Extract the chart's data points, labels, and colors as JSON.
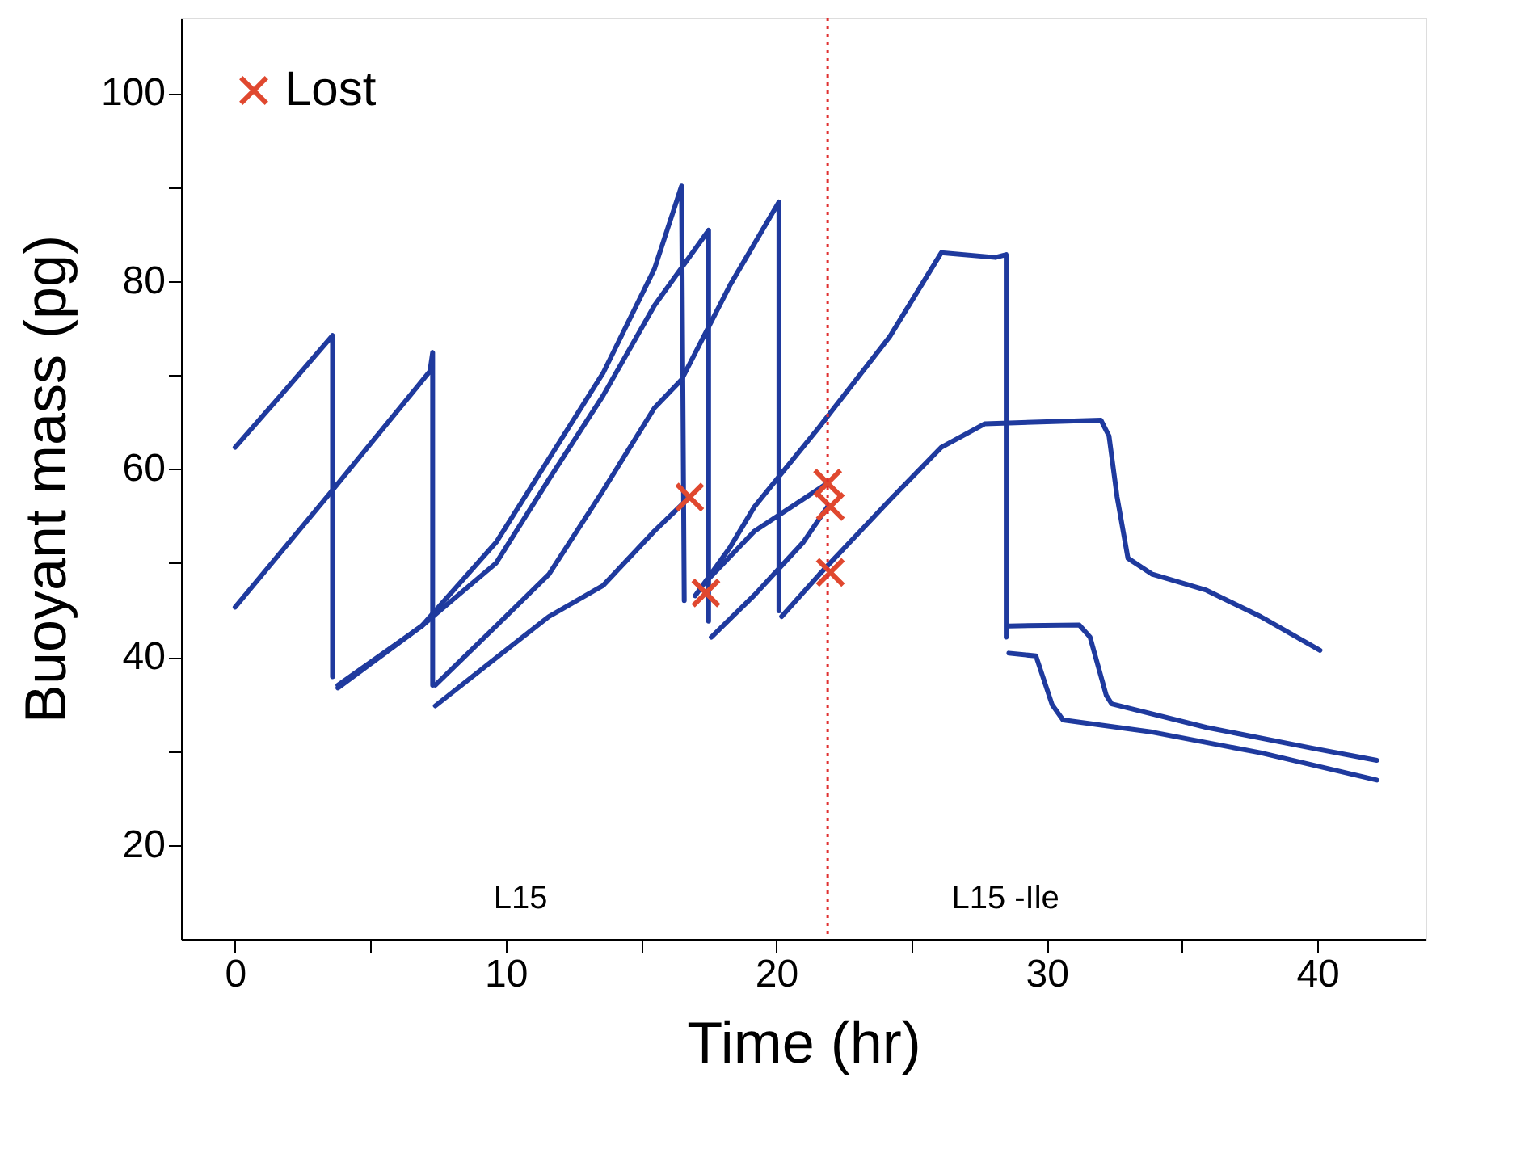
{
  "chart_data": {
    "type": "line",
    "xlabel": "Time (hr)",
    "ylabel": "Buoyant mass (pg)",
    "xlim": [
      -2,
      44
    ],
    "ylim": [
      10,
      108
    ],
    "xticks": [
      0,
      {
        "value": 5,
        "label": null
      },
      10,
      {
        "value": 15,
        "label": null
      },
      20,
      {
        "value": 25,
        "label": null
      },
      30,
      {
        "value": 35,
        "label": null
      },
      40
    ],
    "yticks": [
      20,
      {
        "value": 30,
        "label": null
      },
      40,
      {
        "value": 50,
        "label": null
      },
      60,
      {
        "value": 70,
        "label": null
      },
      80,
      {
        "value": 90,
        "label": null
      },
      100
    ],
    "grid": false,
    "legend": "top left",
    "series": [
      {
        "color": "#1f3a9e",
        "x": [
          0,
          1.8,
          3.6,
          3.6
        ],
        "values": [
          62.3,
          68.2,
          74.2,
          37.9
        ]
      },
      {
        "color": "#1f3a9e",
        "x": [
          0,
          3.5,
          7.2,
          7.3,
          7.3
        ],
        "values": [
          45.3,
          57.4,
          70.4,
          72.4,
          37
        ]
      },
      {
        "color": "#1f3a9e",
        "x": [
          3.8,
          6.9,
          9.65,
          11.6,
          13.6,
          15.5,
          16.5,
          16.6
        ],
        "values": [
          36.7,
          43.3,
          52.2,
          61.1,
          70.2,
          81.3,
          90.1,
          46
        ]
      },
      {
        "color": "#1f3a9e",
        "x": [
          3.8,
          6.9,
          9.65,
          11.6,
          13.6,
          15.5,
          17.5,
          17.5
        ],
        "values": [
          37,
          43.3,
          50,
          58.9,
          67.8,
          77.4,
          85.4,
          43.8
        ]
      },
      {
        "color": "#1f3a9e",
        "x": [
          7.4,
          9.65,
          11.6,
          13.6,
          15.5,
          16.5,
          18.3,
          20.1,
          20.1
        ],
        "values": [
          37,
          43.3,
          48.8,
          57.7,
          66.5,
          69.5,
          79.6,
          88.4,
          44.9
        ]
      },
      {
        "color": "#1f3a9e",
        "x": [
          7.4,
          9.65,
          11.6,
          13.6,
          15.5,
          16.8
        ],
        "values": [
          34.8,
          39.9,
          44.3,
          47.6,
          53.4,
          57
        ]
      },
      {
        "color": "#1f3a9e",
        "x": [
          17.5,
          19.2,
          21.9
        ],
        "values": [
          48.3,
          53.4,
          58.5
        ]
      },
      {
        "color": "#1f3a9e",
        "x": [
          17.6,
          19.2,
          21,
          21.9
        ],
        "values": [
          42.1,
          46.6,
          52.2,
          56
        ]
      },
      {
        "color": "#1f3a9e",
        "x": [
          20.2,
          21.6,
          24.2,
          26.1,
          27.7,
          32,
          32.3,
          32.6,
          33,
          33.9,
          35.9,
          37.9,
          40.1
        ],
        "values": [
          44.3,
          48.8,
          56.7,
          62.3,
          64.8,
          65.2,
          63.5,
          57,
          50.5,
          48.8,
          47.1,
          44.3,
          40.7
        ]
      },
      {
        "color": "#1f3a9e",
        "x": [
          17,
          18.3,
          19.2,
          21.6,
          24.2,
          26.1,
          28.1,
          28.5,
          28.5
        ],
        "values": [
          46.5,
          51.7,
          56,
          64.5,
          74.1,
          83,
          82.5,
          82.8,
          42.1
        ]
      },
      {
        "color": "#1f3a9e",
        "x": [
          28.6,
          31.2,
          31.6,
          32.2,
          32.4,
          35.9,
          39.8,
          42.2
        ],
        "values": [
          43.3,
          43.4,
          42.1,
          35.9,
          35,
          32.5,
          30.3,
          29
        ]
      },
      {
        "color": "#1f3a9e",
        "x": [
          28.6,
          29.6,
          30.2,
          30.6,
          33.9,
          37.9,
          42.2
        ],
        "values": [
          40.4,
          40.1,
          34.9,
          33.3,
          32,
          29.8,
          26.9
        ]
      },
      {
        "type": "scatter",
        "name": "Lost",
        "color": "#e0482f",
        "marker": "cross",
        "x": [
          16.8,
          17.4,
          21.9,
          22,
          22
        ],
        "values": [
          57,
          46.8,
          58.5,
          56,
          49
        ]
      }
    ],
    "ref_lines": [
      {
        "axis": "x",
        "value": 21.9,
        "label": null,
        "color": "#e03030",
        "line_style": "dotted"
      }
    ],
    "annotations": [
      "L15",
      "L15 -Ile"
    ]
  }
}
